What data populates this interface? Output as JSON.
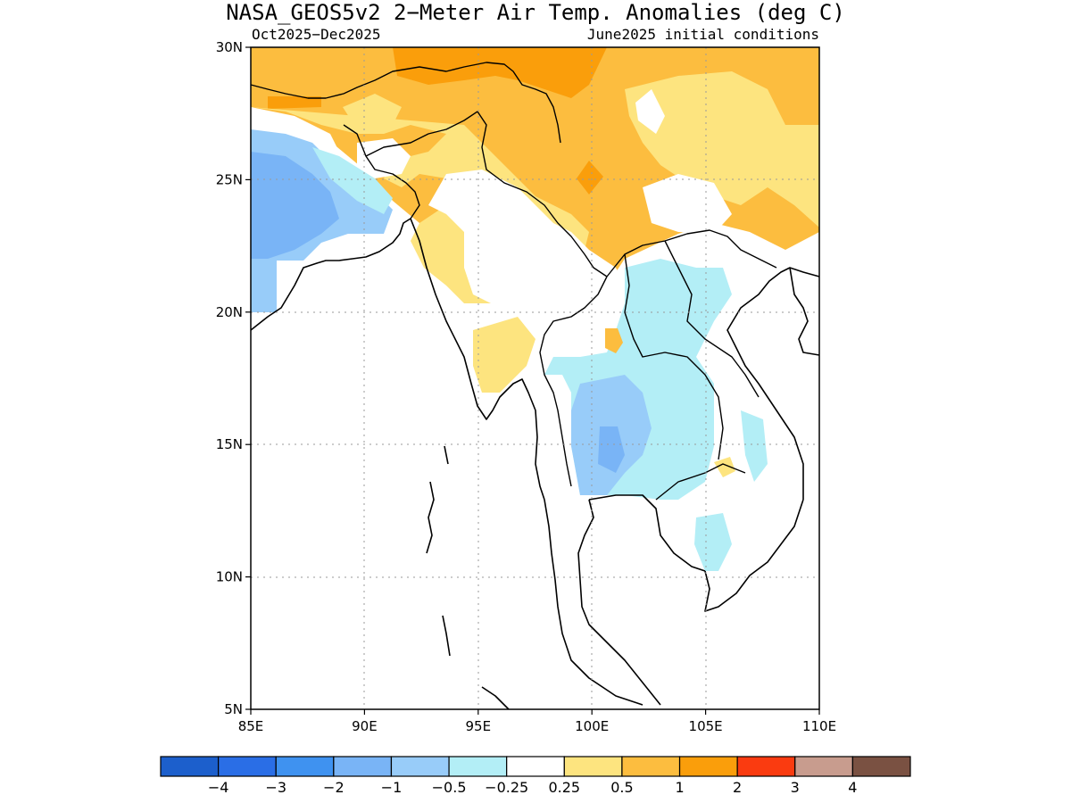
{
  "title": "NASA_GEOS5v2 2−Meter Air Temp. Anomalies (deg C)",
  "subtitle_left": "Oct2025−Dec2025",
  "subtitle_right": "June2025 initial conditions",
  "map": {
    "lon_range": [
      85,
      110
    ],
    "lat_range": [
      5,
      30
    ],
    "lon_ticks": [
      "85E",
      "90E",
      "95E",
      "100E",
      "105E",
      "110E"
    ],
    "lat_ticks": [
      "5N",
      "10N",
      "15N",
      "20N",
      "25N",
      "30N"
    ],
    "grid": "dotted"
  },
  "colorbar": {
    "colors": [
      "#1c5fcc",
      "#2a6ee6",
      "#3f92f0",
      "#79b4f6",
      "#98ccf9",
      "#b3eef6",
      "#ffffff",
      "#fde47f",
      "#fcbd3f",
      "#fa9e0b",
      "#fa3b10",
      "#c89c8e",
      "#7a5142"
    ],
    "labels": [
      "−4",
      "−3",
      "−2",
      "−1",
      "−0.5",
      "−0.25",
      "0.25",
      "0.5",
      "1",
      "2",
      "3",
      "4"
    ]
  },
  "colors": {
    "warm_strong": "#fa9e0b",
    "warm": "#fcbd3f",
    "warm_light": "#fde47f",
    "cool_light": "#b3eef6",
    "cool": "#98ccf9",
    "cool_mid": "#79b4f6"
  }
}
